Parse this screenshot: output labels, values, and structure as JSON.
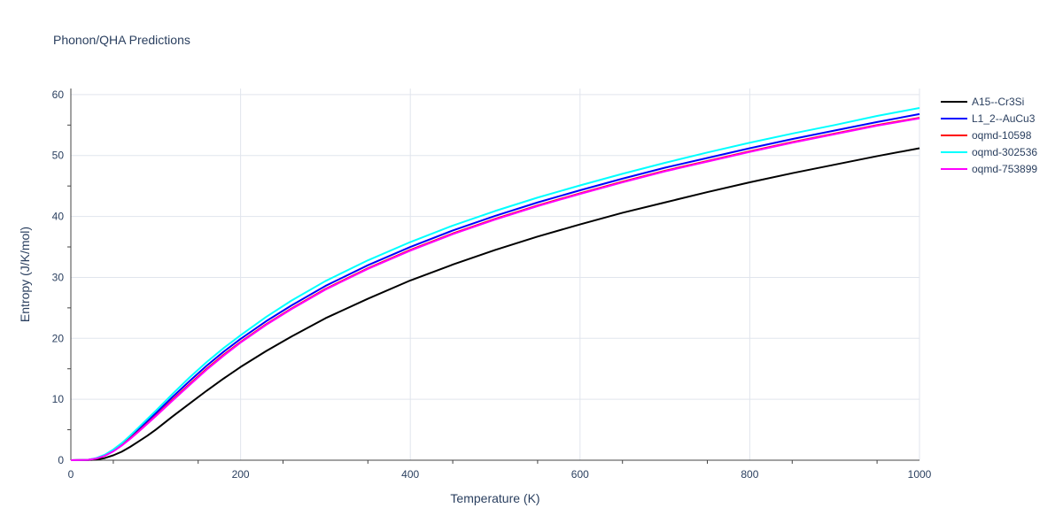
{
  "chart_data": {
    "type": "line",
    "title": "Phonon/QHA Predictions",
    "xlabel": "Temperature (K)",
    "ylabel": "Entropy (J/K/mol)",
    "xlim": [
      0,
      1000
    ],
    "ylim": [
      0,
      61
    ],
    "xticks": [
      0,
      200,
      400,
      600,
      800,
      1000
    ],
    "yticks": [
      0,
      10,
      20,
      30,
      40,
      50,
      60
    ],
    "grid": true,
    "legend_position": "top-right",
    "series": [
      {
        "name": "A15--Cr3Si",
        "color": "#000000",
        "x": [
          0,
          20,
          30,
          40,
          50,
          60,
          70,
          80,
          90,
          100,
          120,
          140,
          160,
          180,
          200,
          230,
          260,
          300,
          350,
          400,
          450,
          500,
          550,
          600,
          650,
          700,
          750,
          800,
          850,
          900,
          950,
          1000
        ],
        "y": [
          0,
          0.02,
          0.1,
          0.35,
          0.8,
          1.4,
          2.2,
          3.1,
          4.0,
          5.0,
          7.2,
          9.3,
          11.4,
          13.4,
          15.3,
          17.9,
          20.3,
          23.3,
          26.5,
          29.5,
          32.1,
          34.5,
          36.7,
          38.7,
          40.6,
          42.3,
          44.0,
          45.6,
          47.1,
          48.5,
          49.9,
          51.2
        ]
      },
      {
        "name": "L1_2--AuCu3",
        "color": "#0000ff",
        "x": [
          0,
          20,
          30,
          40,
          50,
          60,
          70,
          80,
          90,
          100,
          120,
          140,
          160,
          180,
          200,
          230,
          260,
          300,
          350,
          400,
          450,
          500,
          550,
          600,
          650,
          700,
          750,
          800,
          850,
          900,
          950,
          1000
        ],
        "y": [
          0,
          0.05,
          0.3,
          0.8,
          1.6,
          2.6,
          3.8,
          5.1,
          6.4,
          7.7,
          10.4,
          13.0,
          15.5,
          17.8,
          19.9,
          22.8,
          25.4,
          28.6,
          32.0,
          35.0,
          37.7,
          40.1,
          42.3,
          44.3,
          46.2,
          48.0,
          49.6,
          51.2,
          52.7,
          54.1,
          55.5,
          56.8
        ]
      },
      {
        "name": "oqmd-10598",
        "color": "#ff0000",
        "x": [
          0,
          20,
          30,
          40,
          50,
          60,
          70,
          80,
          90,
          100,
          120,
          140,
          160,
          180,
          200,
          230,
          260,
          300,
          350,
          400,
          450,
          500,
          550,
          600,
          650,
          700,
          750,
          800,
          850,
          900,
          950,
          1000
        ],
        "y": [
          0,
          0.05,
          0.28,
          0.75,
          1.5,
          2.45,
          3.6,
          4.8,
          6.05,
          7.3,
          9.95,
          12.5,
          15.0,
          17.3,
          19.4,
          22.3,
          24.9,
          28.1,
          31.5,
          34.5,
          37.2,
          39.6,
          41.8,
          43.8,
          45.7,
          47.5,
          49.1,
          50.7,
          52.2,
          53.6,
          55.0,
          56.2
        ]
      },
      {
        "name": "oqmd-302536",
        "color": "#00ffff",
        "x": [
          0,
          20,
          30,
          40,
          50,
          60,
          70,
          80,
          90,
          100,
          120,
          140,
          160,
          180,
          200,
          230,
          260,
          300,
          350,
          400,
          450,
          500,
          550,
          600,
          650,
          700,
          750,
          800,
          850,
          900,
          950,
          1000
        ],
        "y": [
          0,
          0.06,
          0.35,
          0.9,
          1.75,
          2.8,
          4.05,
          5.4,
          6.75,
          8.1,
          10.9,
          13.6,
          16.1,
          18.4,
          20.5,
          23.5,
          26.2,
          29.4,
          32.8,
          35.8,
          38.5,
          40.9,
          43.1,
          45.1,
          47.0,
          48.8,
          50.5,
          52.1,
          53.6,
          55.0,
          56.5,
          57.8
        ]
      },
      {
        "name": "oqmd-753899",
        "color": "#ff00ff",
        "x": [
          0,
          20,
          30,
          40,
          50,
          60,
          70,
          80,
          90,
          100,
          120,
          140,
          160,
          180,
          200,
          230,
          260,
          300,
          350,
          400,
          450,
          500,
          550,
          600,
          650,
          700,
          750,
          800,
          850,
          900,
          950,
          1000
        ],
        "y": [
          0,
          0.05,
          0.27,
          0.72,
          1.45,
          2.4,
          3.5,
          4.7,
          5.95,
          7.2,
          9.8,
          12.35,
          14.85,
          17.15,
          19.3,
          22.2,
          24.8,
          28.0,
          31.4,
          34.4,
          37.1,
          39.5,
          41.7,
          43.7,
          45.6,
          47.4,
          49.0,
          50.6,
          52.1,
          53.5,
          54.9,
          56.1
        ]
      }
    ]
  }
}
